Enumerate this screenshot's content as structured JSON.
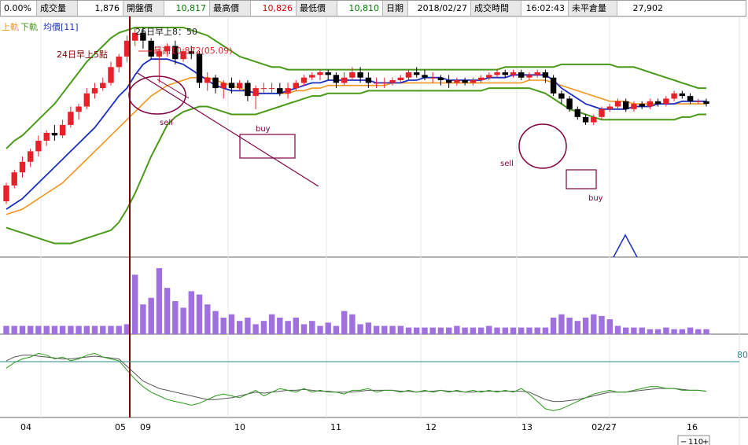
{
  "quote_bar": {
    "change_pct": "0.00%",
    "volume_label": "成交量",
    "volume": "1,876",
    "open_label": "開盤價",
    "open": "10,817",
    "high_label": "最高價",
    "high": "10,826",
    "low_label": "最低價",
    "low": "10,810",
    "date_label": "日期",
    "date": "2018/02/27",
    "time_label": "成交時間",
    "time": "16:02:43",
    "oi_label": "未平倉量",
    "oi": "27,902"
  },
  "legend": {
    "item1": "上軌",
    "item2": "下軌",
    "item3": "均價[11]"
  },
  "annotations": {
    "marker_26": "26日早上8：50",
    "marker_24": "24日早上5點",
    "high_note": "最高10,872(05.09)",
    "sell_1": "sell",
    "buy_1": "buy",
    "sell_2": "sell",
    "buy_2": "buy"
  },
  "colors": {
    "up": "#e8202a",
    "down": "#000000",
    "ma": "#1a2fc0",
    "upper": "#4a9a1a",
    "lower": "#4a9a1a",
    "orange": "#f0961e",
    "volume": "#a070e0",
    "vline": "#800000",
    "ref_line": "#2a8a8a",
    "osc_black": "#555555",
    "osc_green": "#2a9a1a",
    "trend": "#800040",
    "box": "#800040"
  },
  "chart_data": {
    "type": "candlestick",
    "x_labels": [
      "04",
      "05",
      "09",
      "10",
      "11",
      "12",
      "13",
      "02/27",
      "16"
    ],
    "osc_ref_label": "80",
    "osc_scale_text": "110",
    "candles": [
      [
        10450,
        10510,
        10440,
        10520
      ],
      [
        10510,
        10560,
        10500,
        10570
      ],
      [
        10560,
        10600,
        10540,
        10620
      ],
      [
        10600,
        10640,
        10580,
        10650
      ],
      [
        10640,
        10680,
        10620,
        10700
      ],
      [
        10680,
        10710,
        10660,
        10720
      ],
      [
        10710,
        10700,
        10680,
        10740
      ],
      [
        10700,
        10740,
        10690,
        10760
      ],
      [
        10740,
        10790,
        10730,
        10810
      ],
      [
        10790,
        10810,
        10760,
        10820
      ],
      [
        10810,
        10860,
        10800,
        10880
      ],
      [
        10860,
        10880,
        10840,
        10900
      ],
      [
        10880,
        10900,
        10870,
        10920
      ],
      [
        10900,
        10960,
        10890,
        10980
      ],
      [
        10960,
        11000,
        10940,
        11010
      ],
      [
        11000,
        11060,
        10980,
        11080
      ],
      [
        11060,
        11090,
        11040,
        11110
      ],
      [
        11090,
        11060,
        11030,
        11110
      ],
      [
        11060,
        11000,
        10990,
        11070
      ],
      [
        11000,
        11020,
        10900,
        11030
      ],
      [
        11020,
        11040,
        11000,
        11050
      ],
      [
        11040,
        10990,
        10970,
        11060
      ],
      [
        10990,
        11020,
        10980,
        11030
      ],
      [
        11020,
        11010,
        10990,
        11040
      ],
      [
        11010,
        10900,
        10880,
        11020
      ],
      [
        10900,
        10920,
        10870,
        10940
      ],
      [
        10920,
        10880,
        10860,
        10930
      ],
      [
        10880,
        10900,
        10840,
        10910
      ],
      [
        10900,
        10880,
        10860,
        10920
      ],
      [
        10880,
        10900,
        10870,
        10910
      ],
      [
        10900,
        10850,
        10830,
        10910
      ],
      [
        10850,
        10880,
        10800,
        10890
      ],
      [
        10880,
        10880,
        10860,
        10900
      ],
      [
        10880,
        10880,
        10860,
        10900
      ],
      [
        10880,
        10860,
        10850,
        10900
      ],
      [
        10860,
        10880,
        10840,
        10900
      ],
      [
        10880,
        10900,
        10870,
        10910
      ],
      [
        10900,
        10920,
        10890,
        10930
      ],
      [
        10920,
        10930,
        10910,
        10940
      ],
      [
        10930,
        10940,
        10910,
        10950
      ],
      [
        10940,
        10930,
        10910,
        10950
      ],
      [
        10930,
        10900,
        10880,
        10940
      ],
      [
        10900,
        10920,
        10890,
        10940
      ],
      [
        10920,
        10940,
        10910,
        10960
      ],
      [
        10940,
        10920,
        10900,
        10960
      ],
      [
        10920,
        10900,
        10880,
        10940
      ],
      [
        10900,
        10900,
        10880,
        10920
      ],
      [
        10900,
        10900,
        10880,
        10920
      ],
      [
        10900,
        10910,
        10890,
        10920
      ],
      [
        10910,
        10920,
        10900,
        10930
      ],
      [
        10920,
        10940,
        10910,
        10950
      ],
      [
        10940,
        10930,
        10920,
        10960
      ],
      [
        10930,
        10920,
        10910,
        10950
      ],
      [
        10920,
        10920,
        10900,
        10940
      ],
      [
        10920,
        10910,
        10890,
        10930
      ],
      [
        10910,
        10900,
        10880,
        10930
      ],
      [
        10900,
        10910,
        10890,
        10920
      ],
      [
        10910,
        10900,
        10890,
        10920
      ],
      [
        10900,
        10910,
        10890,
        10920
      ],
      [
        10910,
        10920,
        10900,
        10930
      ],
      [
        10920,
        10930,
        10910,
        10940
      ],
      [
        10930,
        10940,
        10920,
        10950
      ],
      [
        10940,
        10930,
        10920,
        10950
      ],
      [
        10930,
        10940,
        10920,
        10950
      ],
      [
        10940,
        10920,
        10910,
        10950
      ],
      [
        10920,
        10930,
        10910,
        10940
      ],
      [
        10930,
        10940,
        10920,
        10950
      ],
      [
        10940,
        10920,
        10900,
        10950
      ],
      [
        10920,
        10860,
        10850,
        10930
      ],
      [
        10860,
        10840,
        10820,
        10870
      ],
      [
        10840,
        10800,
        10790,
        10850
      ],
      [
        10800,
        10770,
        10760,
        10810
      ],
      [
        10770,
        10750,
        10740,
        10780
      ],
      [
        10750,
        10770,
        10740,
        10780
      ],
      [
        10770,
        10800,
        10760,
        10810
      ],
      [
        10800,
        10810,
        10790,
        10820
      ],
      [
        10810,
        10830,
        10800,
        10840
      ],
      [
        10830,
        10800,
        10790,
        10840
      ],
      [
        10800,
        10820,
        10790,
        10830
      ],
      [
        10820,
        10810,
        10800,
        10830
      ],
      [
        10810,
        10830,
        10800,
        10840
      ],
      [
        10830,
        10820,
        10810,
        10840
      ],
      [
        10820,
        10840,
        10810,
        10850
      ],
      [
        10840,
        10860,
        10830,
        10870
      ],
      [
        10860,
        10850,
        10840,
        10870
      ],
      [
        10850,
        10830,
        10820,
        10860
      ],
      [
        10830,
        10830,
        10820,
        10840
      ],
      [
        10830,
        10820,
        10810,
        10840
      ]
    ],
    "ma": [
      10420,
      10440,
      10460,
      10490,
      10520,
      10550,
      10580,
      10610,
      10640,
      10670,
      10700,
      10730,
      10770,
      10810,
      10850,
      10880,
      10930,
      10970,
      10990,
      10990,
      10990,
      10980,
      10970,
      10950,
      10930,
      10910,
      10890,
      10880,
      10870,
      10870,
      10870,
      10860,
      10860,
      10860,
      10860,
      10870,
      10880,
      10890,
      10900,
      10900,
      10910,
      10910,
      10910,
      10910,
      10910,
      10910,
      10900,
      10900,
      10900,
      10900,
      10910,
      10910,
      10920,
      10920,
      10920,
      10910,
      10910,
      10910,
      10910,
      10910,
      10920,
      10920,
      10920,
      10930,
      10930,
      10930,
      10930,
      10930,
      10910,
      10880,
      10860,
      10840,
      10820,
      10810,
      10800,
      10800,
      10800,
      10800,
      10810,
      10810,
      10810,
      10820,
      10820,
      10820,
      10830,
      10830,
      10830,
      10830
    ],
    "upper": [
      10650,
      10680,
      10700,
      10730,
      10760,
      10790,
      10820,
      10860,
      10900,
      10940,
      10980,
      11010,
      11040,
      11070,
      11090,
      11100,
      11110,
      11110,
      11110,
      11110,
      11110,
      11110,
      11110,
      11100,
      11090,
      11080,
      11060,
      11040,
      11020,
      11000,
      10990,
      10980,
      10970,
      10960,
      10960,
      10950,
      10950,
      10950,
      10950,
      10950,
      10950,
      10950,
      10950,
      10950,
      10950,
      10950,
      10950,
      10950,
      10950,
      10950,
      10950,
      10950,
      10950,
      10950,
      10950,
      10950,
      10950,
      10950,
      10950,
      10950,
      10950,
      10950,
      10960,
      10960,
      10960,
      10960,
      10960,
      10960,
      10960,
      10970,
      10970,
      10970,
      10970,
      10970,
      10970,
      10970,
      10960,
      10960,
      10960,
      10950,
      10940,
      10930,
      10920,
      10910,
      10900,
      10890,
      10880,
      10880
    ],
    "lower": [
      10350,
      10340,
      10330,
      10320,
      10310,
      10300,
      10290,
      10290,
      10290,
      10300,
      10310,
      10320,
      10330,
      10340,
      10370,
      10420,
      10480,
      10550,
      10620,
      10680,
      10740,
      10770,
      10790,
      10800,
      10810,
      10810,
      10800,
      10790,
      10780,
      10780,
      10780,
      10780,
      10790,
      10800,
      10810,
      10820,
      10830,
      10840,
      10850,
      10850,
      10860,
      10860,
      10860,
      10860,
      10860,
      10870,
      10870,
      10870,
      10870,
      10870,
      10870,
      10870,
      10870,
      10870,
      10870,
      10870,
      10870,
      10870,
      10870,
      10870,
      10880,
      10880,
      10880,
      10880,
      10880,
      10880,
      10870,
      10860,
      10840,
      10820,
      10800,
      10790,
      10780,
      10770,
      10760,
      10760,
      10760,
      10760,
      10760,
      10760,
      10760,
      10760,
      10760,
      10760,
      10770,
      10770,
      10780,
      10780
    ],
    "orange": [
      10400,
      10410,
      10420,
      10440,
      10460,
      10480,
      10500,
      10520,
      10550,
      10580,
      10610,
      10640,
      10670,
      10700,
      10730,
      10760,
      10790,
      10820,
      10850,
      10870,
      10890,
      10900,
      10910,
      10920,
      10920,
      10920,
      10910,
      10900,
      10890,
      10880,
      10870,
      10860,
      10860,
      10860,
      10860,
      10860,
      10870,
      10870,
      10880,
      10880,
      10890,
      10890,
      10890,
      10890,
      10890,
      10890,
      10890,
      10890,
      10900,
      10900,
      10900,
      10900,
      10900,
      10900,
      10900,
      10900,
      10900,
      10900,
      10900,
      10900,
      10900,
      10900,
      10900,
      10900,
      10900,
      10910,
      10910,
      10910,
      10900,
      10890,
      10880,
      10870,
      10860,
      10850,
      10840,
      10830,
      10830,
      10830,
      10820,
      10820,
      10820,
      10820,
      10820,
      10820,
      10820,
      10820,
      10820,
      10820
    ],
    "volume": [
      5,
      5,
      5,
      5,
      5,
      5,
      5,
      5,
      5,
      5,
      5,
      5,
      5,
      5,
      5,
      6,
      36,
      18,
      22,
      40,
      28,
      20,
      16,
      26,
      24,
      18,
      14,
      10,
      12,
      8,
      10,
      6,
      8,
      12,
      10,
      8,
      10,
      6,
      8,
      5,
      7,
      5,
      14,
      12,
      6,
      7,
      5,
      5,
      5,
      5,
      4,
      4,
      4,
      4,
      4,
      4,
      5,
      4,
      4,
      4,
      5,
      4,
      4,
      4,
      4,
      4,
      4,
      4,
      10,
      12,
      10,
      8,
      10,
      12,
      11,
      9,
      5,
      4,
      4,
      4,
      3,
      3,
      4,
      3,
      3,
      4,
      3,
      3
    ],
    "osc_black": [
      78,
      82,
      84,
      84,
      83,
      82,
      81,
      80,
      80,
      81,
      82,
      83,
      82,
      81,
      80,
      72,
      64,
      56,
      52,
      48,
      46,
      44,
      42,
      40,
      38,
      36,
      36,
      37,
      38,
      40,
      42,
      44,
      43,
      44,
      45,
      46,
      46,
      47,
      46,
      45,
      45,
      44,
      44,
      44,
      45,
      46,
      46,
      46,
      46,
      45,
      45,
      44,
      45,
      45,
      46,
      45,
      45,
      44,
      44,
      45,
      45,
      45,
      45,
      45,
      45,
      44,
      40,
      36,
      34,
      34,
      35,
      36,
      38,
      40,
      42,
      44,
      44,
      44,
      45,
      46,
      47,
      48,
      48,
      48,
      47,
      46,
      46,
      45
    ],
    "osc_green": [
      70,
      76,
      80,
      82,
      86,
      84,
      80,
      82,
      78,
      80,
      84,
      86,
      82,
      80,
      78,
      68,
      58,
      50,
      44,
      40,
      36,
      34,
      32,
      30,
      32,
      36,
      40,
      42,
      40,
      38,
      42,
      46,
      40,
      44,
      48,
      46,
      44,
      48,
      44,
      46,
      44,
      44,
      42,
      46,
      46,
      48,
      44,
      46,
      46,
      44,
      46,
      44,
      46,
      44,
      46,
      44,
      46,
      44,
      46,
      44,
      46,
      44,
      46,
      44,
      48,
      42,
      34,
      26,
      24,
      26,
      30,
      34,
      38,
      42,
      44,
      46,
      44,
      44,
      46,
      48,
      50,
      50,
      48,
      48,
      46,
      46,
      46,
      45
    ]
  }
}
